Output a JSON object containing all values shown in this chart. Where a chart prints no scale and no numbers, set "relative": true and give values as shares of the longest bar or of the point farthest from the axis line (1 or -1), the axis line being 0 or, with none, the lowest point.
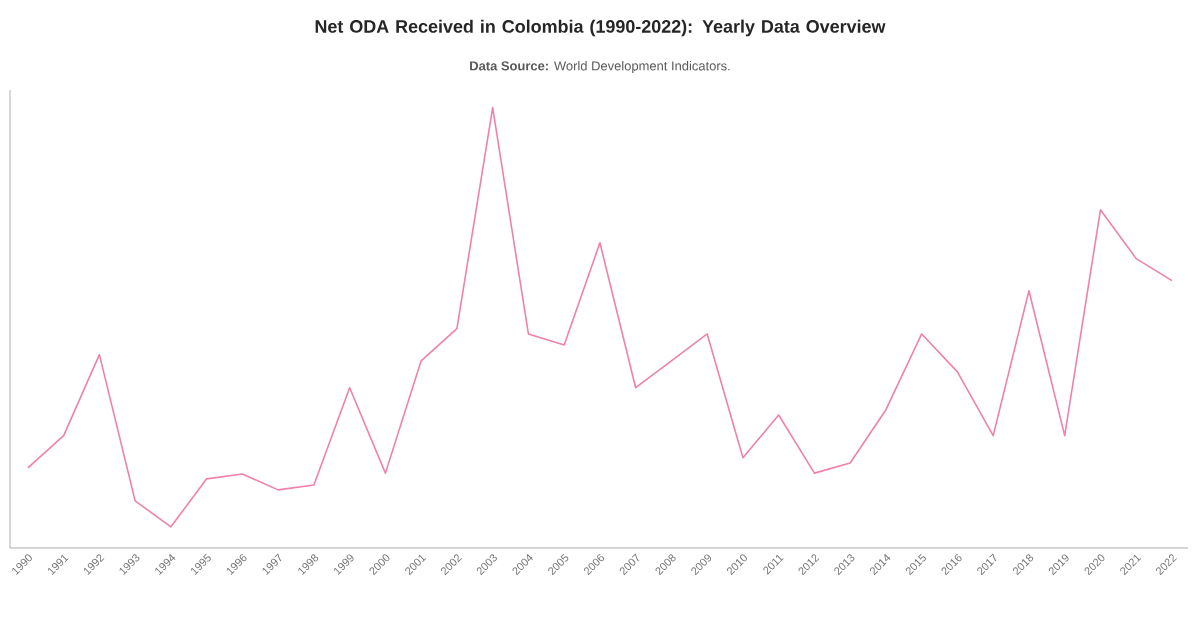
{
  "chart_data": {
    "type": "line",
    "title": "Net ODA Received in Colombia (1990-2022): Yearly Data Overview",
    "subtitle": "**Data Source:** World Development Indicators.",
    "relative": true,
    "color": "#f080ac",
    "categories": [
      "1990",
      "1991",
      "1992",
      "1993",
      "1994",
      "1995",
      "1996",
      "1997",
      "1998",
      "1999",
      "2000",
      "2001",
      "2002",
      "2003",
      "2004",
      "2005",
      "2006",
      "2007",
      "2008",
      "2009",
      "2010",
      "2011",
      "2012",
      "2013",
      "2014",
      "2015",
      "2016",
      "2017",
      "2018",
      "2019",
      "2020",
      "2021",
      "2022"
    ],
    "values": [
      0.182,
      0.255,
      0.439,
      0.107,
      0.048,
      0.157,
      0.168,
      0.132,
      0.143,
      0.364,
      0.17,
      0.425,
      0.498,
      1.0,
      0.486,
      0.461,
      0.693,
      0.364,
      0.425,
      0.486,
      0.205,
      0.302,
      0.17,
      0.193,
      0.314,
      0.486,
      0.4,
      0.255,
      0.584,
      0.255,
      0.768,
      0.657,
      0.607
    ]
  }
}
